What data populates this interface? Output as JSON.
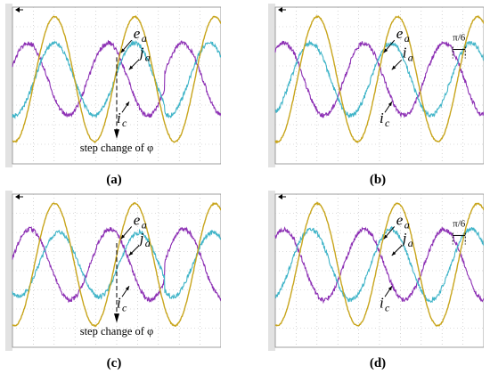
{
  "colors": {
    "ea": "#c8a51c",
    "ja": "#3fb4c8",
    "ic": "#8c2fb4",
    "grid": "#b9b9b9",
    "plot_bg": "#ffffff",
    "left_strip": "#e2e2e2"
  },
  "chart_data": [
    {
      "type": "line",
      "panel": "(a)",
      "annotations": {
        "ea": "e",
        "ea_sub": "a",
        "ja": "j",
        "ja_sub": "a",
        "ic": "i",
        "ic_sub": "c",
        "step": "step change of φ",
        "shift": ""
      },
      "series": [
        {
          "name": "e_a",
          "amplitude": 0.95,
          "phase_deg": 0
        },
        {
          "name": "j_a",
          "amplitude": 0.55,
          "phase_deg": 0
        },
        {
          "name": "i_c",
          "amplitude": 0.55,
          "phase_deg": 120
        }
      ],
      "step_change_cycle": 1.9,
      "grid": true
    },
    {
      "type": "line",
      "panel": "(b)",
      "annotations": {
        "ea": "e",
        "ea_sub": "a",
        "ja": "i",
        "ja_sub": "a",
        "ic": "i",
        "ic_sub": "c",
        "step": "",
        "shift": "π/6"
      },
      "series": [
        {
          "name": "e_a",
          "amplitude": 0.95,
          "phase_deg": 0
        },
        {
          "name": "i_a",
          "amplitude": 0.55,
          "phase_deg": 30
        },
        {
          "name": "i_c",
          "amplitude": 0.55,
          "phase_deg": 150
        }
      ],
      "grid": true
    },
    {
      "type": "line",
      "panel": "(c)",
      "annotations": {
        "ea": "e",
        "ea_sub": "a",
        "ja": "j",
        "ja_sub": "a",
        "ic": "i",
        "ic_sub": "c",
        "step": "step change of φ",
        "shift": ""
      },
      "series": [
        {
          "name": "e_a",
          "amplitude": 0.95,
          "phase_deg": 0
        },
        {
          "name": "j_a",
          "amplitude": 0.5,
          "phase_deg": -20
        },
        {
          "name": "i_c",
          "amplitude": 0.55,
          "phase_deg": 110
        }
      ],
      "step_change_cycle": 1.9,
      "grid": true
    },
    {
      "type": "line",
      "panel": "(d)",
      "annotations": {
        "ea": "e",
        "ea_sub": "a",
        "ja": "j",
        "ja_sub": "a",
        "ic": "i",
        "ic_sub": "c",
        "step": "",
        "shift": "π/6"
      },
      "series": [
        {
          "name": "e_a",
          "amplitude": 0.95,
          "phase_deg": 0
        },
        {
          "name": "j_a",
          "amplitude": 0.55,
          "phase_deg": 30
        },
        {
          "name": "i_c",
          "amplitude": 0.55,
          "phase_deg": 150
        }
      ],
      "grid": true
    }
  ],
  "captions": [
    "(a)",
    "(b)",
    "(c)",
    "(d)"
  ]
}
